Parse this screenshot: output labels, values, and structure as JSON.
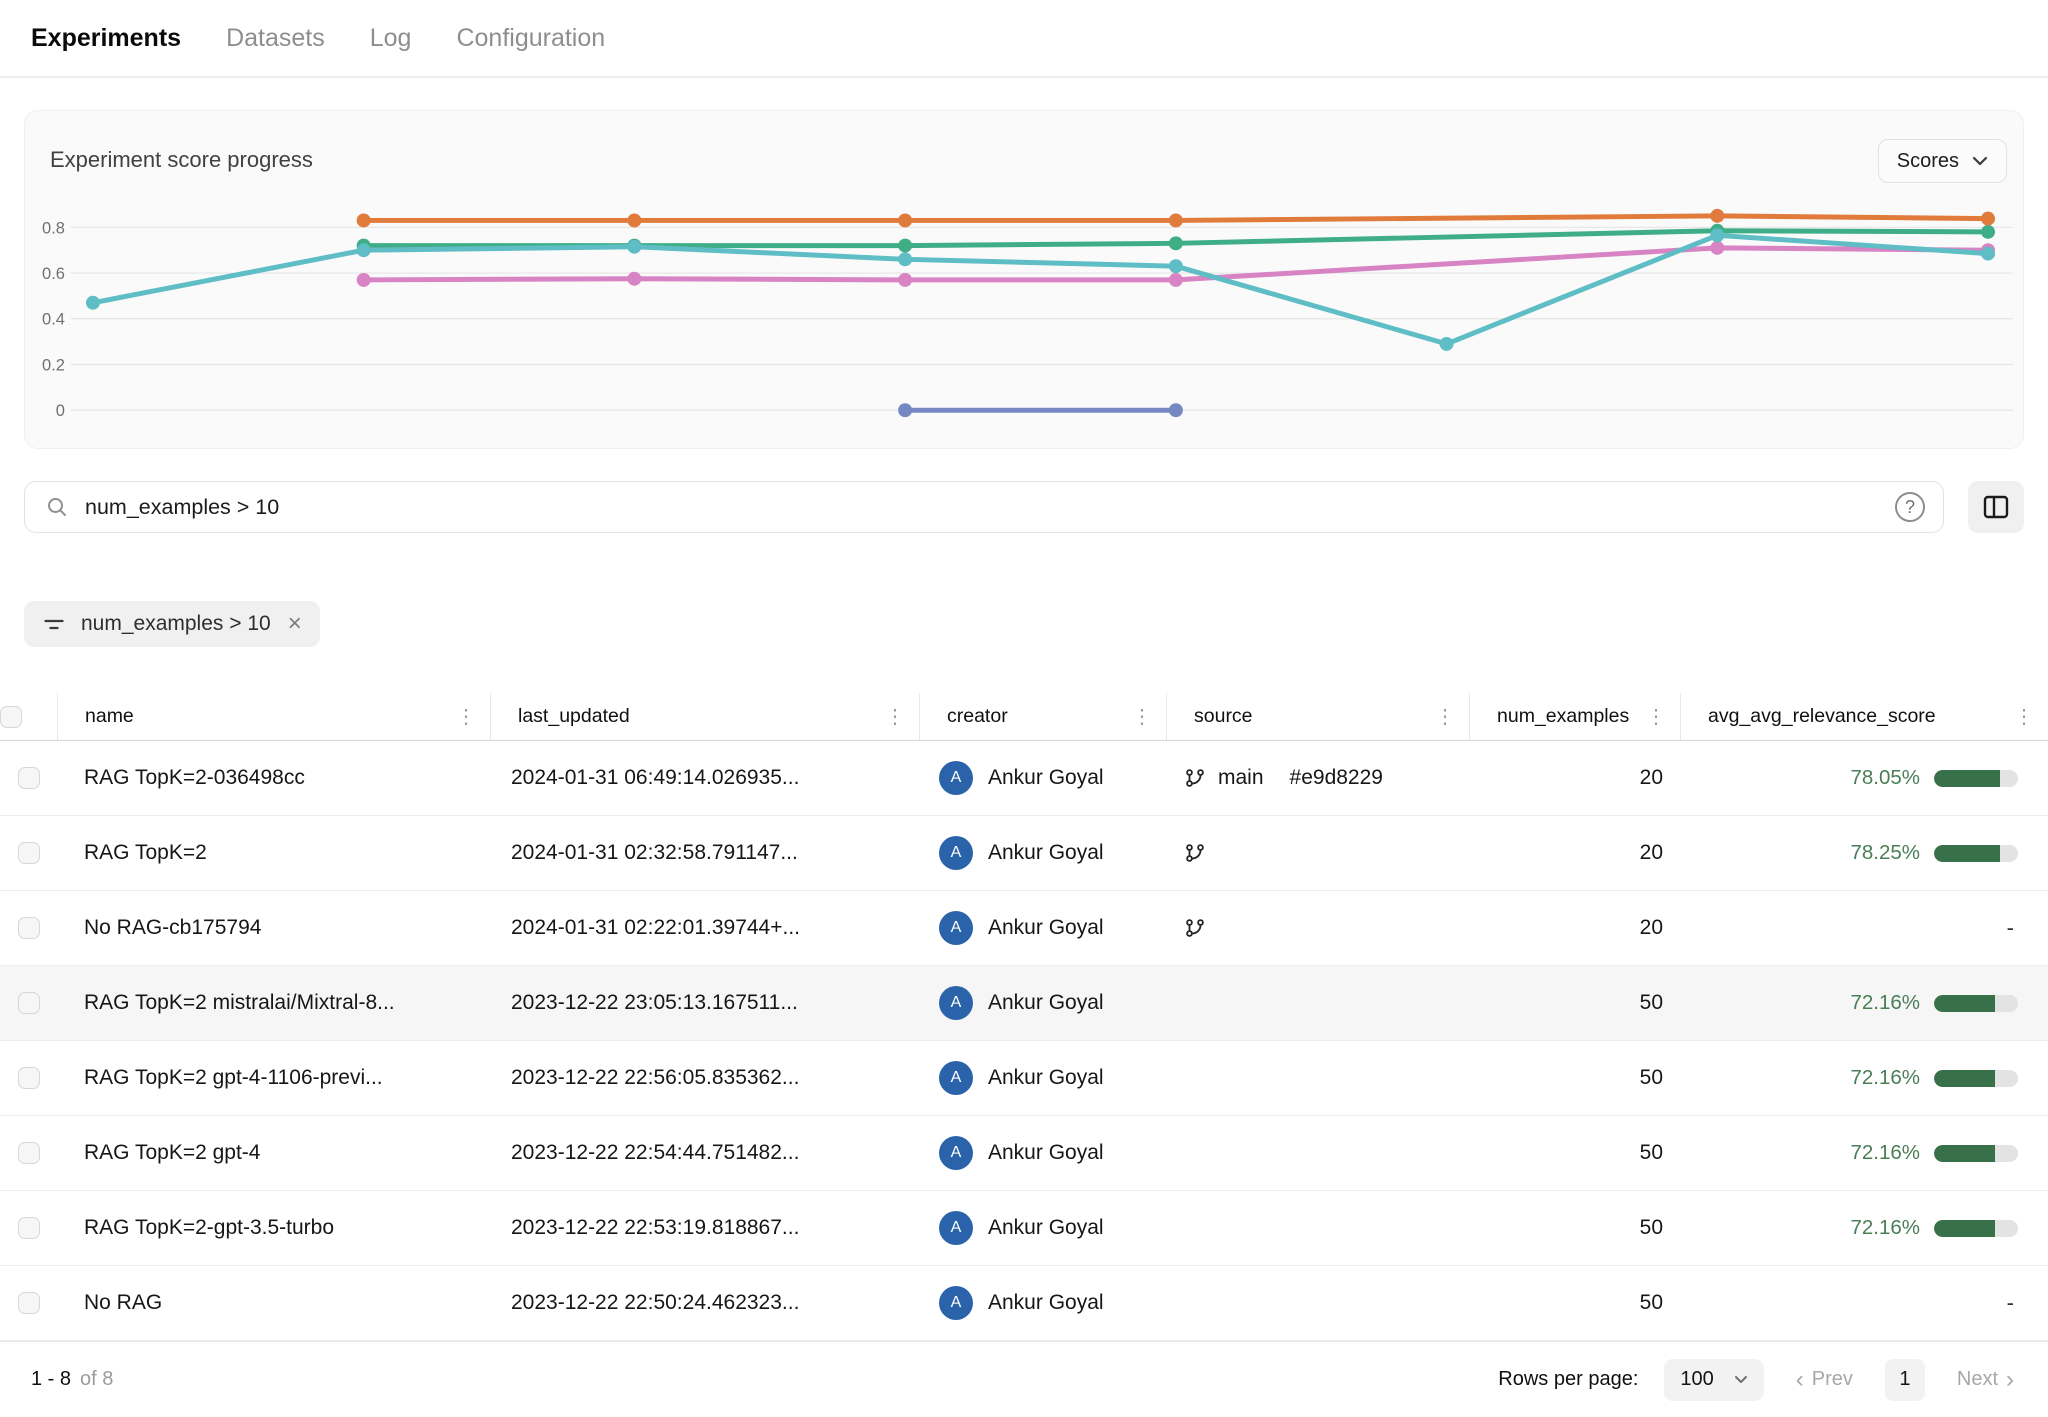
{
  "nav": {
    "items": [
      {
        "key": "experiments",
        "label": "Experiments",
        "active": true
      },
      {
        "key": "datasets",
        "label": "Datasets",
        "active": false
      },
      {
        "key": "log",
        "label": "Log",
        "active": false
      },
      {
        "key": "configuration",
        "label": "Configuration",
        "active": false
      }
    ]
  },
  "chart": {
    "title": "Experiment score progress",
    "scores_button": "Scores"
  },
  "chart_data": {
    "type": "line",
    "title": "Experiment score progress",
    "xlabel": "",
    "ylabel": "",
    "x": [
      0,
      1,
      2,
      3,
      4,
      5,
      6,
      7
    ],
    "ylim": [
      0,
      0.9
    ],
    "grid": true,
    "legend_position": "none",
    "y_ticks": [
      {
        "label": "0.8",
        "value": 0.8
      },
      {
        "label": "0.6",
        "value": 0.6
      },
      {
        "label": "0.4",
        "value": 0.4
      },
      {
        "label": "0.2",
        "value": 0.2
      },
      {
        "label": "0",
        "value": 0.0
      }
    ],
    "series": [
      {
        "name": "green-score-line",
        "color": "#3fae86",
        "points": [
          [
            1,
            0.72
          ],
          [
            2,
            0.72
          ],
          [
            3,
            0.72
          ],
          [
            4,
            0.73
          ],
          [
            6,
            0.785
          ],
          [
            7,
            0.78
          ]
        ]
      },
      {
        "name": "orange-score-line",
        "color": "#e07b3c",
        "points": [
          [
            1,
            0.83
          ],
          [
            2,
            0.83
          ],
          [
            3,
            0.83
          ],
          [
            4,
            0.83
          ],
          [
            6,
            0.85
          ],
          [
            7,
            0.838
          ]
        ]
      },
      {
        "name": "pink-score-line",
        "color": "#d783c4",
        "points": [
          [
            1,
            0.57
          ],
          [
            2,
            0.575
          ],
          [
            3,
            0.57
          ],
          [
            4,
            0.57
          ],
          [
            6,
            0.71
          ],
          [
            7,
            0.7
          ]
        ]
      },
      {
        "name": "teal-score-line",
        "color": "#5fbdc5",
        "points": [
          [
            0,
            0.47
          ],
          [
            1,
            0.7
          ],
          [
            2,
            0.715
          ],
          [
            3,
            0.66
          ],
          [
            4,
            0.63
          ],
          [
            5,
            0.29
          ],
          [
            6,
            0.765
          ],
          [
            7,
            0.685
          ]
        ]
      },
      {
        "name": "blue-score-line",
        "color": "#7588c2",
        "points": [
          [
            3,
            0.0
          ],
          [
            4,
            0.0
          ]
        ]
      }
    ]
  },
  "search": {
    "value": "num_examples > 10"
  },
  "filter_chip": {
    "label": "num_examples > 10"
  },
  "table": {
    "empty_value": "-",
    "columns": [
      {
        "key": "name",
        "label": "name"
      },
      {
        "key": "last",
        "label": "last_updated"
      },
      {
        "key": "creator",
        "label": "creator"
      },
      {
        "key": "source",
        "label": "source"
      },
      {
        "key": "num",
        "label": "num_examples"
      },
      {
        "key": "score",
        "label": "avg_avg_relevance_score"
      }
    ],
    "rows": [
      {
        "name": "RAG TopK=2-036498cc",
        "last_updated": "2024-01-31 06:49:14.026935...",
        "creator": "Ankur Goyal",
        "creator_initial": "A",
        "source": {
          "branch_icon": true,
          "branch": "main",
          "commit": "#e9d8229"
        },
        "num_examples": "20",
        "score": {
          "label": "78.05%",
          "percent": 78.05
        },
        "highlighted": false
      },
      {
        "name": "RAG TopK=2",
        "last_updated": "2024-01-31 02:32:58.791147...",
        "creator": "Ankur Goyal",
        "creator_initial": "A",
        "source": {
          "branch_icon": true,
          "branch": "",
          "commit": ""
        },
        "num_examples": "20",
        "score": {
          "label": "78.25%",
          "percent": 78.25
        },
        "highlighted": false
      },
      {
        "name": "No RAG-cb175794",
        "last_updated": "2024-01-31 02:22:01.39744+...",
        "creator": "Ankur Goyal",
        "creator_initial": "A",
        "source": {
          "branch_icon": true,
          "branch": "",
          "commit": ""
        },
        "num_examples": "20",
        "score": null,
        "highlighted": false
      },
      {
        "name": "RAG TopK=2 mistralai/Mixtral-8...",
        "last_updated": "2023-12-22 23:05:13.167511...",
        "creator": "Ankur Goyal",
        "creator_initial": "A",
        "source": {
          "branch_icon": false,
          "branch": "",
          "commit": ""
        },
        "num_examples": "50",
        "score": {
          "label": "72.16%",
          "percent": 72.16
        },
        "highlighted": true
      },
      {
        "name": "RAG TopK=2 gpt-4-1106-previ...",
        "last_updated": "2023-12-22 22:56:05.835362...",
        "creator": "Ankur Goyal",
        "creator_initial": "A",
        "source": {
          "branch_icon": false,
          "branch": "",
          "commit": ""
        },
        "num_examples": "50",
        "score": {
          "label": "72.16%",
          "percent": 72.16
        },
        "highlighted": false
      },
      {
        "name": "RAG TopK=2 gpt-4",
        "last_updated": "2023-12-22 22:54:44.751482...",
        "creator": "Ankur Goyal",
        "creator_initial": "A",
        "source": {
          "branch_icon": false,
          "branch": "",
          "commit": ""
        },
        "num_examples": "50",
        "score": {
          "label": "72.16%",
          "percent": 72.16
        },
        "highlighted": false
      },
      {
        "name": "RAG TopK=2-gpt-3.5-turbo",
        "last_updated": "2023-12-22 22:53:19.818867...",
        "creator": "Ankur Goyal",
        "creator_initial": "A",
        "source": {
          "branch_icon": false,
          "branch": "",
          "commit": ""
        },
        "num_examples": "50",
        "score": {
          "label": "72.16%",
          "percent": 72.16
        },
        "highlighted": false
      },
      {
        "name": "No RAG",
        "last_updated": "2023-12-22 22:50:24.462323...",
        "creator": "Ankur Goyal",
        "creator_initial": "A",
        "source": {
          "branch_icon": false,
          "branch": "",
          "commit": ""
        },
        "num_examples": "50",
        "score": null,
        "highlighted": false
      }
    ]
  },
  "footer": {
    "range": "1 - 8",
    "of": "of 8",
    "rows_per_page_label": "Rows per page:",
    "rows_per_page_value": "100",
    "prev_label": "Prev",
    "page": "1",
    "next_label": "Next"
  }
}
